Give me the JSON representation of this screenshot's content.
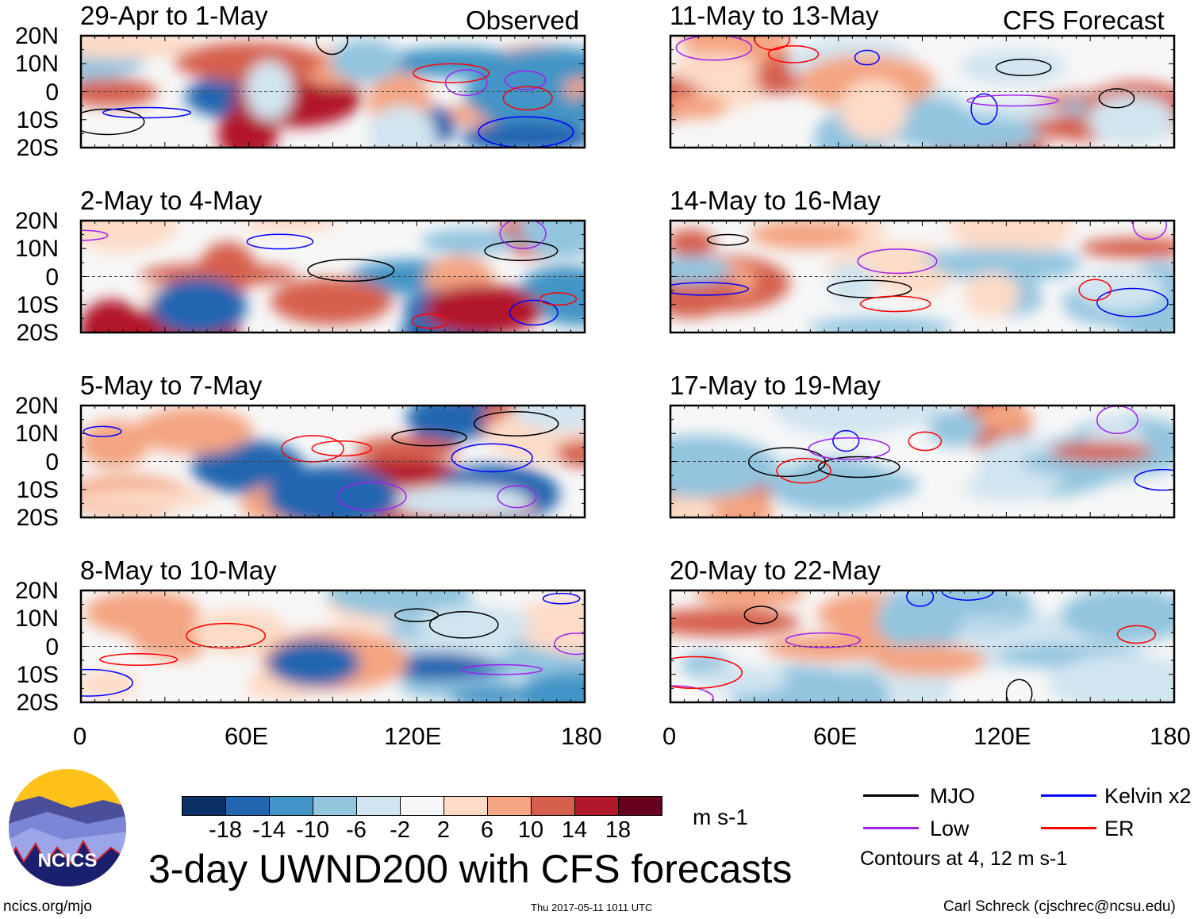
{
  "observed_label": "Observed",
  "forecast_label": "CFS Forecast",
  "panels": {
    "left": [
      "29-Apr to 1-May",
      "2-May to 4-May",
      "5-May to 7-May",
      "8-May to 10-May"
    ],
    "right": [
      "11-May to 13-May",
      "14-May to 16-May",
      "17-May to 19-May",
      "20-May to 22-May"
    ]
  },
  "lat_labels": [
    "20N",
    "10N",
    "0",
    "10S",
    "20S"
  ],
  "lon_labels": [
    "0",
    "60E",
    "120E",
    "180"
  ],
  "colorbar": {
    "colors": [
      "#0a3065",
      "#2266b0",
      "#4295c6",
      "#93c5df",
      "#d1e5f0",
      "#f7f7f7",
      "#fddbc7",
      "#f4a582",
      "#d6604d",
      "#b2182b",
      "#67001f"
    ],
    "ticks": [
      "-18",
      "-14",
      "-10",
      "-6",
      "-2",
      "2",
      "6",
      "10",
      "14",
      "18"
    ],
    "units": "m s-1"
  },
  "legend": {
    "items": [
      {
        "label": "MJO",
        "color": "#000000"
      },
      {
        "label": "Kelvin x2",
        "color": "#0000ff"
      },
      {
        "label": "Low",
        "color": "#a020f0"
      },
      {
        "label": "ER",
        "color": "#ff0000"
      }
    ],
    "note": "Contours at 4, 12 m s-1"
  },
  "logo_text": "NCICS",
  "title": "3-day UWND200 with CFS forecasts",
  "footer": {
    "url": "ncics.org/mjo",
    "timestamp": "Thu 2017-05-11 1011 UTC",
    "author": "Carl Schreck (cjschrec@ncsu.edu)"
  }
}
